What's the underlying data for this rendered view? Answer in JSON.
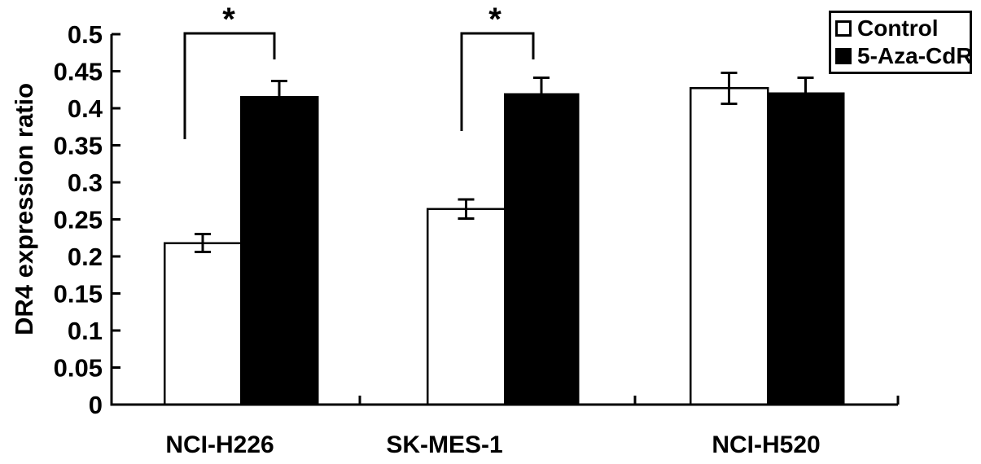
{
  "figure": {
    "background": "#ffffff",
    "ink_color": "#000000",
    "ylabel": "DR4 expression ratio"
  },
  "legend": {
    "items": [
      {
        "label": "Control",
        "swatch": "white-square",
        "fill": "#ffffff"
      },
      {
        "label": "5-Aza-CdR",
        "swatch": "black-square",
        "fill": "#000000"
      }
    ]
  },
  "chart_data": {
    "type": "bar",
    "title": "",
    "xlabel": "",
    "ylabel": "DR4 expression ratio",
    "categories": [
      "NCI-H226",
      "SK-MES-1",
      "NCI-H520"
    ],
    "series": [
      {
        "name": "Control",
        "fill": "#ffffff",
        "stroke": "#000000",
        "values": [
          0.218,
          0.264,
          0.427
        ],
        "errors": [
          0.012,
          0.013,
          0.021
        ]
      },
      {
        "name": "5-Aza-CdR",
        "fill": "#000000",
        "stroke": "#000000",
        "values": [
          0.415,
          0.419,
          0.42
        ],
        "errors": [
          0.022,
          0.022,
          0.021
        ]
      }
    ],
    "ylim": [
      0,
      0.5
    ],
    "yticks": [
      0,
      0.05,
      0.1,
      0.15,
      0.2,
      0.25,
      0.3,
      0.35,
      0.4,
      0.45,
      0.5
    ],
    "yticklabels": [
      "0",
      "0.05",
      "0.1",
      "0.15",
      "0.2",
      "0.25",
      "0.3",
      "0.35",
      "0.4",
      "0.45",
      "0.5"
    ],
    "grid": false,
    "error_bars": true,
    "legend_position": "top-right",
    "significance": [
      {
        "category": "NCI-H226",
        "between": [
          "Control",
          "5-Aza-CdR"
        ],
        "label": "*"
      },
      {
        "category": "SK-MES-1",
        "between": [
          "Control",
          "5-Aza-CdR"
        ],
        "label": "*"
      }
    ]
  }
}
